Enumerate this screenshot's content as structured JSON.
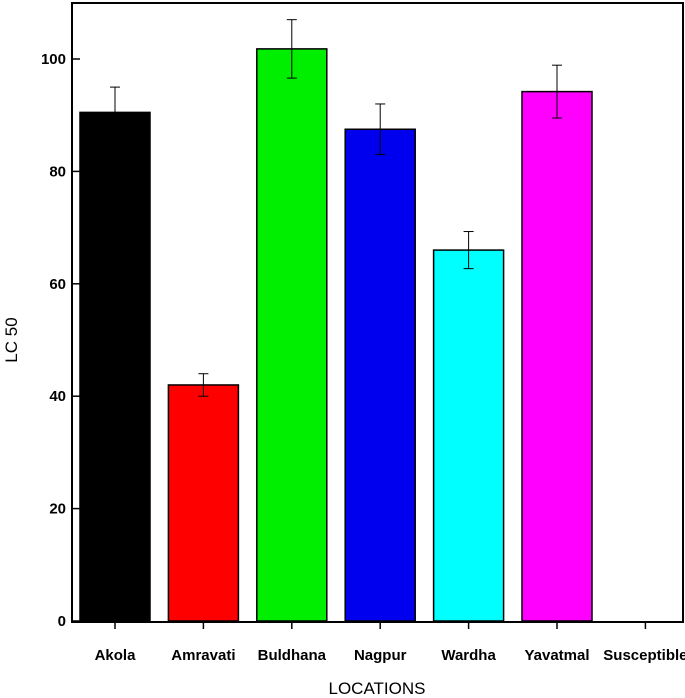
{
  "chart_data": {
    "type": "bar",
    "title": "",
    "xlabel": "LOCATIONS",
    "ylabel": "LC 50",
    "categories": [
      "Akola",
      "Amravati",
      "Buldhana",
      "Nagpur",
      "Wardha",
      "Yavatmal",
      "Susceptible"
    ],
    "values": [
      90.5,
      42.0,
      101.8,
      87.5,
      66.0,
      94.2,
      null
    ],
    "errors": [
      4.5,
      2.0,
      5.2,
      4.5,
      3.3,
      4.7,
      null
    ],
    "colors": [
      "#000000",
      "#ff0000",
      "#00ee00",
      "#0000ee",
      "#00ffff",
      "#ff00ff",
      "#ffffff"
    ],
    "ylim": [
      0,
      108
    ],
    "yticks": [
      0,
      20,
      40,
      60,
      80,
      100
    ],
    "grid": false,
    "legend": "none"
  }
}
